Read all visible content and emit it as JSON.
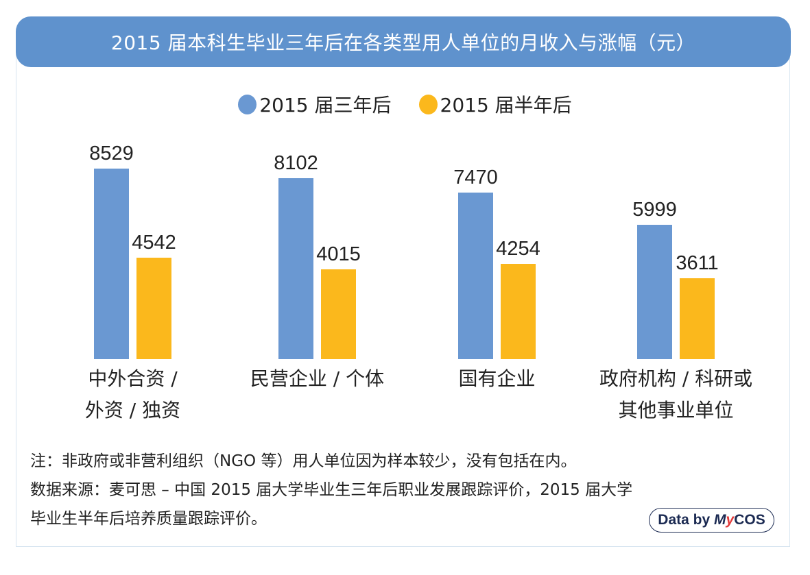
{
  "title": "2015 届本科生毕业三年后在各类型用人单位的月收入与涨幅（元）",
  "legend": [
    {
      "label": "2015 届三年后",
      "color": "#6a98d2"
    },
    {
      "label": "2015 届半年后",
      "color": "#fbb81c"
    }
  ],
  "chart_data": {
    "type": "bar",
    "title": "2015 届本科生毕业三年后在各类型用人单位的月收入与涨幅（元）",
    "xlabel": "",
    "ylabel": "",
    "categories": [
      "中外合资 / 外资 / 独资",
      "民营企业 / 个体",
      "国有企业",
      "政府机构 / 科研或其他事业单位"
    ],
    "series": [
      {
        "name": "2015 届三年后",
        "color": "#6a98d2",
        "values": [
          8529,
          8102,
          7470,
          5999
        ]
      },
      {
        "name": "2015 届半年后",
        "color": "#fbb81c",
        "values": [
          4542,
          4015,
          4254,
          3611
        ]
      }
    ],
    "ylim": [
      0,
      9000
    ],
    "grid": false,
    "legend_position": "top",
    "data_labels": true
  },
  "categories_display": [
    "中外合资 /\n外资 / 独资",
    "民营企业 / 个体",
    "国有企业",
    "政府机构 / 科研或\n其他事业单位"
  ],
  "notes": {
    "note": "注：非政府或非营利组织（NGO 等）用人单位因为样本较少，没有包括在内。",
    "source_line1": "数据来源：麦可思 – 中国 2015 届大学毕业生三年后职业发展跟踪评价，2015 届大学",
    "source_line2": "毕业生半年后培养质量跟踪评价。"
  },
  "badge": {
    "prefix": "Data by ",
    "brand_m": "M",
    "brand_y": "y",
    "brand_rest": "COS"
  }
}
